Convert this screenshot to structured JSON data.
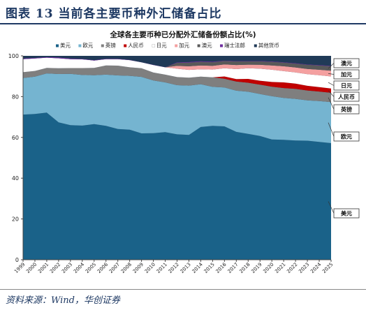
{
  "header": {
    "title": "图表 13  当前各主要币种外汇储备占比"
  },
  "source": {
    "text": "资料来源：Wind，华创证券"
  },
  "chart_data": {
    "type": "area",
    "title": "全球各主要币种已分配外汇储备份额占比(%)",
    "xlabel": "",
    "ylabel": "",
    "ylim": [
      0,
      100
    ],
    "yticks": [
      0,
      20,
      40,
      60,
      80,
      100
    ],
    "grid": false,
    "legend_position": "top",
    "stacked": true,
    "x": [
      "1999",
      "2000",
      "2001",
      "2002",
      "2003",
      "2004",
      "2005",
      "2006",
      "2007",
      "2008",
      "2009",
      "2010",
      "2011",
      "2012",
      "2013",
      "2014",
      "2015",
      "2016",
      "2017",
      "2018",
      "2019",
      "2020",
      "2021",
      "2022",
      "2023",
      "2024",
      "2025"
    ],
    "series": [
      {
        "name": "美元",
        "color": "#1a6289",
        "values": [
          71.2,
          71.5,
          72.2,
          67.4,
          66.0,
          65.8,
          66.5,
          65.7,
          64.1,
          63.8,
          62.0,
          62.1,
          62.6,
          61.5,
          61.2,
          65.1,
          65.7,
          65.4,
          62.7,
          61.7,
          60.7,
          59.0,
          58.8,
          58.5,
          58.4,
          57.8,
          57.2
        ]
      },
      {
        "name": "欧元",
        "color": "#75b4d0",
        "values": [
          17.9,
          18.3,
          19.2,
          23.7,
          25.2,
          24.8,
          24.0,
          25.1,
          26.3,
          26.4,
          27.7,
          25.8,
          24.4,
          24.1,
          24.2,
          21.0,
          19.1,
          19.1,
          20.2,
          20.7,
          20.6,
          21.2,
          20.6,
          20.4,
          19.8,
          20.0,
          20.1
        ]
      },
      {
        "name": "英镑",
        "color": "#7f7f7f",
        "values": [
          2.9,
          2.8,
          2.7,
          2.8,
          2.8,
          3.4,
          3.6,
          4.5,
          4.8,
          4.2,
          4.2,
          3.9,
          3.8,
          4.0,
          3.9,
          3.7,
          4.7,
          4.3,
          4.5,
          4.4,
          4.6,
          4.7,
          4.8,
          4.9,
          4.8,
          4.7,
          4.6
        ]
      },
      {
        "name": "人民币",
        "color": "#c00000",
        "values": [
          0,
          0,
          0,
          0,
          0,
          0,
          0,
          0,
          0,
          0,
          0,
          0,
          0,
          0,
          0,
          0,
          0,
          1.1,
          1.2,
          1.9,
          1.9,
          2.3,
          2.8,
          2.6,
          2.3,
          2.2,
          2.1
        ]
      },
      {
        "name": "日元",
        "color": "#ffffff",
        "values": [
          6.4,
          6.1,
          5.0,
          4.9,
          4.4,
          4.3,
          3.6,
          3.1,
          3.2,
          3.5,
          2.9,
          3.7,
          3.6,
          4.1,
          3.8,
          3.6,
          3.8,
          4.0,
          4.9,
          5.2,
          5.9,
          6.0,
          5.5,
          5.5,
          5.7,
          5.8,
          5.9
        ]
      },
      {
        "name": "加元",
        "color": "#f4a0a0",
        "values": [
          0,
          0,
          0,
          0,
          0,
          0,
          0,
          0,
          0,
          0,
          0,
          0,
          0,
          1.4,
          1.8,
          1.9,
          1.8,
          1.9,
          2.0,
          1.8,
          1.9,
          2.1,
          2.4,
          2.4,
          2.6,
          2.7,
          2.8
        ]
      },
      {
        "name": "澳元",
        "color": "#595959",
        "values": [
          0,
          0,
          0,
          0,
          0,
          0,
          0,
          0,
          0,
          0,
          0,
          0,
          0,
          1.5,
          1.8,
          1.8,
          1.8,
          1.7,
          1.8,
          1.6,
          1.7,
          1.8,
          1.8,
          1.9,
          2.0,
          2.1,
          2.2
        ]
      },
      {
        "name": "瑞士法郎",
        "color": "#7030a0",
        "values": [
          0.3,
          0.3,
          0.3,
          0.4,
          0.3,
          0.2,
          0.2,
          0.2,
          0.2,
          0.1,
          0.1,
          0.1,
          0.1,
          0.2,
          0.3,
          0.3,
          0.3,
          0.2,
          0.2,
          0.2,
          0.2,
          0.2,
          0.2,
          0.2,
          0.2,
          0.2,
          0.2
        ]
      },
      {
        "name": "其他货币",
        "color": "#203a57",
        "values": [
          1.3,
          1.0,
          0.6,
          0.8,
          1.3,
          1.5,
          2.1,
          1.4,
          1.4,
          2.0,
          3.1,
          4.4,
          5.5,
          3.2,
          3.0,
          2.6,
          2.8,
          2.3,
          2.5,
          2.5,
          2.5,
          2.7,
          3.1,
          3.6,
          4.2,
          4.3,
          4.9
        ]
      }
    ],
    "callouts": [
      "澳元",
      "加元",
      "日元",
      "人民币",
      "英镑",
      "欧元",
      "美元"
    ]
  }
}
